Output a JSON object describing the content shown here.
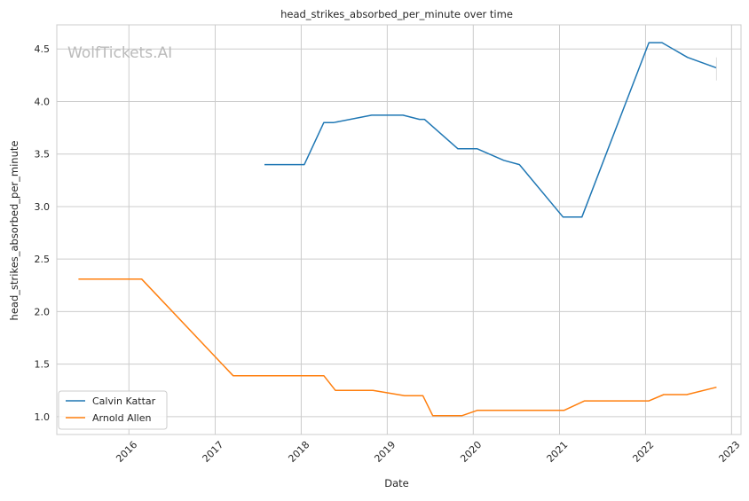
{
  "chart_data": {
    "type": "line",
    "title": "head_strikes_absorbed_per_minute over time",
    "xlabel": "Date",
    "ylabel": "head_strikes_absorbed_per_minute",
    "watermark": "WolfTickets.AI",
    "xlim": [
      "2015-03-01",
      "2023-02-10"
    ],
    "ylim": [
      0.83,
      4.73
    ],
    "x_ticks": [
      "2016-01-01",
      "2017-01-01",
      "2018-01-01",
      "2019-01-01",
      "2020-01-01",
      "2021-01-01",
      "2022-01-01",
      "2023-01-01"
    ],
    "x_tick_labels": [
      "2016",
      "2017",
      "2018",
      "2019",
      "2020",
      "2021",
      "2022",
      "2023"
    ],
    "y_ticks": [
      1.0,
      1.5,
      2.0,
      2.5,
      3.0,
      3.5,
      4.0,
      4.5
    ],
    "y_tick_labels": [
      "1.0",
      "1.5",
      "2.0",
      "2.5",
      "3.0",
      "3.5",
      "4.0",
      "4.5"
    ],
    "grid": true,
    "legend_position": "lower-left",
    "series": [
      {
        "name": "Calvin Kattar",
        "color": "#1f77b4",
        "points": [
          [
            "2017-07-29",
            3.4
          ],
          [
            "2018-01-14",
            3.4
          ],
          [
            "2018-04-07",
            3.8
          ],
          [
            "2018-05-19",
            3.8
          ],
          [
            "2018-10-27",
            3.87
          ],
          [
            "2019-03-09",
            3.87
          ],
          [
            "2019-05-18",
            3.83
          ],
          [
            "2019-06-08",
            3.83
          ],
          [
            "2019-10-28",
            3.55
          ],
          [
            "2020-01-18",
            3.55
          ],
          [
            "2020-05-09",
            3.44
          ],
          [
            "2020-07-15",
            3.4
          ],
          [
            "2021-01-16",
            2.9
          ],
          [
            "2021-04-06",
            2.9
          ],
          [
            "2022-01-15",
            4.56
          ],
          [
            "2022-03-12",
            4.56
          ],
          [
            "2022-06-28",
            4.42
          ],
          [
            "2022-10-29",
            4.32
          ]
        ],
        "error_bar": {
          "x": "2022-10-29",
          "low": 4.2,
          "high": 4.42
        }
      },
      {
        "name": "Arnold Allen",
        "color": "#ff7f0e",
        "points": [
          [
            "2015-06-01",
            2.31
          ],
          [
            "2016-02-24",
            2.31
          ],
          [
            "2017-03-18",
            1.39
          ],
          [
            "2018-04-07",
            1.39
          ],
          [
            "2018-05-26",
            1.25
          ],
          [
            "2018-11-01",
            1.25
          ],
          [
            "2019-03-16",
            1.2
          ],
          [
            "2019-06-01",
            1.2
          ],
          [
            "2019-07-13",
            1.01
          ],
          [
            "2019-11-15",
            1.01
          ],
          [
            "2020-01-18",
            1.06
          ],
          [
            "2021-01-20",
            1.06
          ],
          [
            "2021-04-17",
            1.15
          ],
          [
            "2022-01-15",
            1.15
          ],
          [
            "2022-03-19",
            1.21
          ],
          [
            "2022-06-25",
            1.21
          ],
          [
            "2022-10-29",
            1.28
          ]
        ]
      }
    ]
  }
}
